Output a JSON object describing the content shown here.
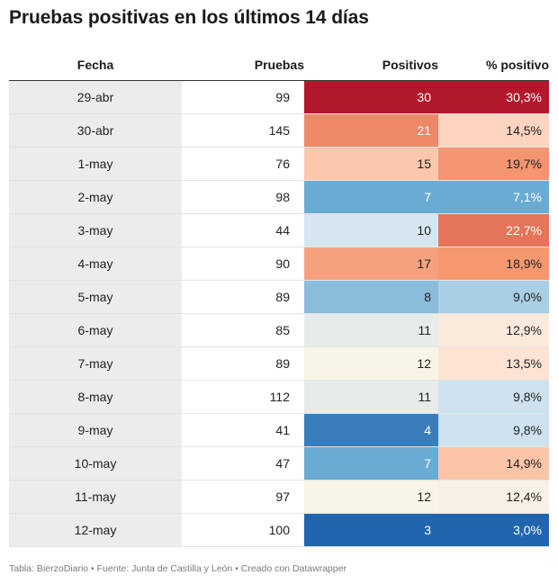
{
  "title": "Pruebas positivas en los últimos 14 días",
  "footer": "Tabla: BierzoDiario • Fuente: Junta de Castilla y León • Creado con Datawrapper",
  "chart_data": {
    "type": "table",
    "columns": [
      "Fecha",
      "Pruebas",
      "Positivos",
      "% positivo"
    ],
    "rows": [
      {
        "fecha": "29-abr",
        "pruebas": 99,
        "positivos": 30,
        "pct": "30,3%",
        "pos_color": "#b2182b",
        "pct_color": "#b2182b"
      },
      {
        "fecha": "30-abr",
        "pruebas": 145,
        "positivos": 21,
        "pct": "14,5%",
        "pos_color": "#ee8866",
        "pct_color": "#fdd4c0"
      },
      {
        "fecha": "1-may",
        "pruebas": 76,
        "positivos": 15,
        "pct": "19,7%",
        "pos_color": "#fbc7ab",
        "pct_color": "#f29570"
      },
      {
        "fecha": "2-may",
        "pruebas": 98,
        "positivos": 7,
        "pct": "7,1%",
        "pos_color": "#6aabd3",
        "pct_color": "#6aabd3"
      },
      {
        "fecha": "3-may",
        "pruebas": 44,
        "positivos": 10,
        "pct": "22,7%",
        "pos_color": "#d5e6ef",
        "pct_color": "#e4755a"
      },
      {
        "fecha": "4-may",
        "pruebas": 90,
        "positivos": 17,
        "pct": "18,9%",
        "pos_color": "#f5a17f",
        "pct_color": "#f5986f"
      },
      {
        "fecha": "5-may",
        "pruebas": 89,
        "positivos": 8,
        "pct": "9,0%",
        "pos_color": "#8abcdc",
        "pct_color": "#a9cfe4"
      },
      {
        "fecha": "6-may",
        "pruebas": 85,
        "positivos": 11,
        "pct": "12,9%",
        "pos_color": "#e5ece9",
        "pct_color": "#faeadc"
      },
      {
        "fecha": "7-may",
        "pruebas": 89,
        "positivos": 12,
        "pct": "13,5%",
        "pos_color": "#f8f4e6",
        "pct_color": "#fce3d3"
      },
      {
        "fecha": "8-may",
        "pruebas": 112,
        "positivos": 11,
        "pct": "9,8%",
        "pos_color": "#e5ece9",
        "pct_color": "#cde2ee"
      },
      {
        "fecha": "9-may",
        "pruebas": 41,
        "positivos": 4,
        "pct": "9,8%",
        "pos_color": "#3a7dbb",
        "pct_color": "#cde2ee"
      },
      {
        "fecha": "10-may",
        "pruebas": 47,
        "positivos": 7,
        "pct": "14,9%",
        "pos_color": "#6aabd3",
        "pct_color": "#fcc5a7"
      },
      {
        "fecha": "11-may",
        "pruebas": 97,
        "positivos": 12,
        "pct": "12,4%",
        "pos_color": "#f8f4e6",
        "pct_color": "#f8f2e6"
      },
      {
        "fecha": "12-may",
        "pruebas": 100,
        "positivos": 3,
        "pct": "3,0%",
        "pos_color": "#2166ac",
        "pct_color": "#2166ac"
      }
    ]
  }
}
